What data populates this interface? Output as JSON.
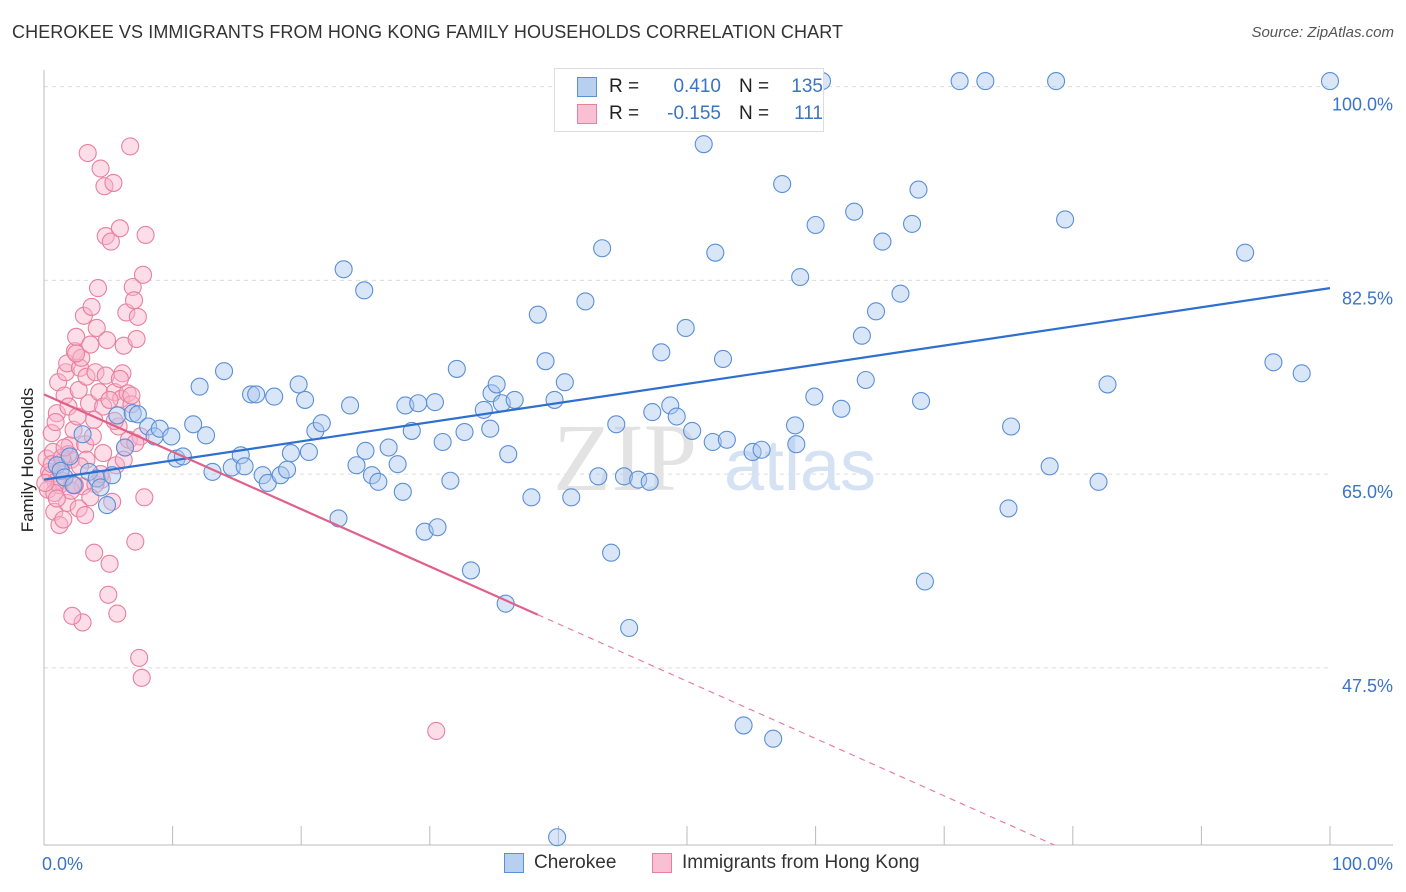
{
  "title": "CHEROKEE VS IMMIGRANTS FROM HONG KONG FAMILY HOUSEHOLDS CORRELATION CHART",
  "source": "Source: ZipAtlas.com",
  "watermark": {
    "zip": "ZIP",
    "atlas": "atlas"
  },
  "legend": {
    "r_label": "R =",
    "n_label": "N =",
    "rows": [
      {
        "name": "Cherokee",
        "r": "0.410",
        "n": "135",
        "color": "#5b8fd6",
        "fill": "#b8d0f0"
      },
      {
        "name": "Immigrants from Hong Kong",
        "r": "-0.155",
        "n": "111",
        "color": "#e8809f",
        "fill": "#f8c0d2"
      }
    ]
  },
  "chart_data": {
    "type": "scatter",
    "title": "CHEROKEE VS IMMIGRANTS FROM HONG KONG FAMILY HOUSEHOLDS CORRELATION CHART",
    "xlabel": "",
    "ylabel": "Family Households",
    "xlim": [
      0,
      100
    ],
    "ylim": [
      31.5,
      101.5
    ],
    "x_tick_labels": [
      {
        "x": 0,
        "label": "0.0%"
      },
      {
        "x": 100,
        "label": "100.0%"
      }
    ],
    "y_tick_labels": [
      {
        "y": 100.0,
        "label": "100.0%"
      },
      {
        "y": 82.5,
        "label": "82.5%"
      },
      {
        "y": 65.0,
        "label": "65.0%"
      },
      {
        "y": 47.5,
        "label": "47.5%"
      }
    ],
    "grid": true,
    "series": [
      {
        "name": "Cherokee",
        "color": "#5b8fd6",
        "trend": {
          "x0": 0.0,
          "y0": 64.5,
          "x1": 100.0,
          "y1": 81.8,
          "style": "solid"
        },
        "points": [
          [
            1,
            65.8
          ],
          [
            1.3,
            65.3
          ],
          [
            1.6,
            64.7
          ],
          [
            2,
            66.6
          ],
          [
            2.3,
            64.0
          ],
          [
            3,
            68.6
          ],
          [
            3.5,
            65.2
          ],
          [
            4.1,
            64.6
          ],
          [
            4.4,
            63.8
          ],
          [
            4.9,
            62.2
          ],
          [
            5.3,
            64.9
          ],
          [
            5.7,
            70.3
          ],
          [
            6.3,
            67.4
          ],
          [
            6.9,
            70.5
          ],
          [
            7.3,
            70.4
          ],
          [
            8.1,
            69.3
          ],
          [
            8.6,
            68.4
          ],
          [
            9.0,
            69.1
          ],
          [
            9.9,
            68.4
          ],
          [
            10.3,
            66.4
          ],
          [
            10.8,
            66.6
          ],
          [
            11.6,
            69.5
          ],
          [
            12.1,
            72.9
          ],
          [
            12.6,
            68.5
          ],
          [
            13.1,
            65.2
          ],
          [
            14.0,
            74.3
          ],
          [
            14.6,
            65.6
          ],
          [
            15.3,
            66.7
          ],
          [
            15.6,
            65.7
          ],
          [
            16.1,
            72.2
          ],
          [
            16.5,
            72.2
          ],
          [
            17.0,
            64.9
          ],
          [
            17.4,
            64.2
          ],
          [
            17.9,
            72.0
          ],
          [
            18.4,
            64.9
          ],
          [
            18.9,
            65.4
          ],
          [
            19.2,
            66.9
          ],
          [
            19.8,
            73.1
          ],
          [
            20.3,
            71.7
          ],
          [
            20.6,
            67.0
          ],
          [
            21.1,
            68.9
          ],
          [
            21.6,
            69.6
          ],
          [
            22.9,
            61.0
          ],
          [
            23.3,
            83.5
          ],
          [
            23.8,
            71.2
          ],
          [
            24.3,
            65.8
          ],
          [
            24.9,
            81.6
          ],
          [
            25.0,
            67.1
          ],
          [
            25.5,
            64.9
          ],
          [
            26.0,
            64.3
          ],
          [
            26.8,
            67.4
          ],
          [
            27.5,
            65.9
          ],
          [
            27.9,
            63.4
          ],
          [
            28.1,
            71.2
          ],
          [
            28.6,
            68.9
          ],
          [
            29.1,
            71.4
          ],
          [
            29.6,
            59.8
          ],
          [
            30.4,
            71.5
          ],
          [
            30.6,
            60.2
          ],
          [
            31.0,
            67.9
          ],
          [
            31.6,
            64.4
          ],
          [
            32.1,
            74.5
          ],
          [
            32.7,
            68.8
          ],
          [
            33.2,
            56.3
          ],
          [
            34.2,
            70.8
          ],
          [
            34.7,
            69.1
          ],
          [
            34.8,
            72.3
          ],
          [
            35.2,
            73.1
          ],
          [
            35.6,
            71.4
          ],
          [
            35.9,
            53.3
          ],
          [
            36.6,
            71.7
          ],
          [
            37.9,
            62.9
          ],
          [
            38.4,
            79.4
          ],
          [
            39.0,
            75.2
          ],
          [
            39.7,
            71.7
          ],
          [
            39.9,
            32.2
          ],
          [
            40.5,
            73.3
          ],
          [
            41.0,
            62.9
          ],
          [
            42.1,
            80.6
          ],
          [
            43.1,
            64.8
          ],
          [
            43.4,
            85.4
          ],
          [
            44.1,
            57.9
          ],
          [
            44.5,
            69.5
          ],
          [
            45.1,
            64.8
          ],
          [
            45.5,
            51.1
          ],
          [
            46.2,
            64.5
          ],
          [
            47.1,
            64.3
          ],
          [
            48.0,
            76.0
          ],
          [
            48.7,
            71.2
          ],
          [
            49.2,
            70.2
          ],
          [
            49.9,
            78.2
          ],
          [
            50.4,
            68.9
          ],
          [
            51.3,
            100.6
          ],
          [
            51.3,
            94.8
          ],
          [
            52.0,
            67.9
          ],
          [
            52.2,
            85.0
          ],
          [
            52.8,
            75.4
          ],
          [
            53.1,
            68.1
          ],
          [
            54.4,
            42.3
          ],
          [
            55.1,
            67.0
          ],
          [
            55.8,
            67.2
          ],
          [
            56.7,
            41.1
          ],
          [
            57.4,
            91.2
          ],
          [
            58.4,
            69.4
          ],
          [
            58.5,
            67.7
          ],
          [
            58.8,
            82.8
          ],
          [
            60.0,
            87.5
          ],
          [
            60.5,
            100.5
          ],
          [
            62.0,
            70.9
          ],
          [
            63.0,
            88.7
          ],
          [
            63.6,
            77.5
          ],
          [
            63.9,
            73.5
          ],
          [
            64.7,
            79.7
          ],
          [
            65.2,
            86.0
          ],
          [
            66.6,
            81.3
          ],
          [
            67.5,
            87.6
          ],
          [
            68.0,
            90.7
          ],
          [
            68.2,
            71.6
          ],
          [
            68.5,
            55.3
          ],
          [
            71.2,
            100.5
          ],
          [
            73.2,
            100.5
          ],
          [
            75.0,
            61.9
          ],
          [
            75.2,
            69.3
          ],
          [
            78.2,
            65.7
          ],
          [
            78.7,
            100.5
          ],
          [
            79.4,
            88.0
          ],
          [
            82.0,
            64.3
          ],
          [
            82.7,
            73.1
          ],
          [
            93.4,
            85.0
          ],
          [
            95.6,
            75.1
          ],
          [
            97.8,
            74.1
          ],
          [
            100.0,
            100.5
          ],
          [
            47.3,
            70.6
          ],
          [
            59.9,
            72.0
          ],
          [
            36.1,
            66.8
          ]
        ]
      },
      {
        "name": "Immigrants from Hong Kong",
        "color": "#e8809f",
        "trend": {
          "x0": 0.0,
          "y0": 72.2,
          "x1": 38.4,
          "y1": 52.3,
          "style": "solid",
          "dashed_to": {
            "x": 100.0,
            "y": 20.4
          }
        },
        "points": [
          [
            0.2,
            66.4
          ],
          [
            0.4,
            65.2
          ],
          [
            0.5,
            64.9
          ],
          [
            0.6,
            68.7
          ],
          [
            0.7,
            67.0
          ],
          [
            0.8,
            61.6
          ],
          [
            0.9,
            64.3
          ],
          [
            1.0,
            70.5
          ],
          [
            1.1,
            73.3
          ],
          [
            1.2,
            60.4
          ],
          [
            1.3,
            65.5
          ],
          [
            1.4,
            64.4
          ],
          [
            1.5,
            66.2
          ],
          [
            1.6,
            72.1
          ],
          [
            1.7,
            74.2
          ],
          [
            1.8,
            75.0
          ],
          [
            1.9,
            71.1
          ],
          [
            2.0,
            67.6
          ],
          [
            2.1,
            66.3
          ],
          [
            2.2,
            64.1
          ],
          [
            2.3,
            69.0
          ],
          [
            2.4,
            76.1
          ],
          [
            2.5,
            77.4
          ],
          [
            2.6,
            70.2
          ],
          [
            2.7,
            72.6
          ],
          [
            2.8,
            74.6
          ],
          [
            2.9,
            75.5
          ],
          [
            3.0,
            51.6
          ],
          [
            3.1,
            79.3
          ],
          [
            3.2,
            67.7
          ],
          [
            3.3,
            73.8
          ],
          [
            3.4,
            94.0
          ],
          [
            3.5,
            71.4
          ],
          [
            3.6,
            76.7
          ],
          [
            3.7,
            80.1
          ],
          [
            3.8,
            68.4
          ],
          [
            3.9,
            57.9
          ],
          [
            4.0,
            74.2
          ],
          [
            4.1,
            78.2
          ],
          [
            4.2,
            81.8
          ],
          [
            4.3,
            72.4
          ],
          [
            4.4,
            92.6
          ],
          [
            4.5,
            64.5
          ],
          [
            4.6,
            71.1
          ],
          [
            4.7,
            91.0
          ],
          [
            4.8,
            86.5
          ],
          [
            4.9,
            77.1
          ],
          [
            5.0,
            54.1
          ],
          [
            5.1,
            56.9
          ],
          [
            5.2,
            86.0
          ],
          [
            5.3,
            62.5
          ],
          [
            5.4,
            91.3
          ],
          [
            5.5,
            72.4
          ],
          [
            5.6,
            65.8
          ],
          [
            5.7,
            52.4
          ],
          [
            5.8,
            69.3
          ],
          [
            5.9,
            87.2
          ],
          [
            6.0,
            71.8
          ],
          [
            6.1,
            74.1
          ],
          [
            6.2,
            76.6
          ],
          [
            6.3,
            67.4
          ],
          [
            6.4,
            79.6
          ],
          [
            6.5,
            72.3
          ],
          [
            6.6,
            68.1
          ],
          [
            6.7,
            94.6
          ],
          [
            6.8,
            71.3
          ],
          [
            6.9,
            81.9
          ],
          [
            7.0,
            80.7
          ],
          [
            7.1,
            58.9
          ],
          [
            7.2,
            77.2
          ],
          [
            7.3,
            79.2
          ],
          [
            7.4,
            48.4
          ],
          [
            7.5,
            68.4
          ],
          [
            7.6,
            46.6
          ],
          [
            7.7,
            83.0
          ],
          [
            7.8,
            62.9
          ],
          [
            7.9,
            86.6
          ],
          [
            3.0,
            63.9
          ],
          [
            1.5,
            60.9
          ],
          [
            2.2,
            52.2
          ],
          [
            4.8,
            73.9
          ],
          [
            0.3,
            63.6
          ],
          [
            0.9,
            69.7
          ],
          [
            1.8,
            62.4
          ],
          [
            2.5,
            75.9
          ],
          [
            3.3,
            66.3
          ],
          [
            4.0,
            64.1
          ],
          [
            5.5,
            69.8
          ],
          [
            6.2,
            66.3
          ],
          [
            7.1,
            67.8
          ],
          [
            0.6,
            65.9
          ],
          [
            1.2,
            64.0
          ],
          [
            1.9,
            66.8
          ],
          [
            2.8,
            65.7
          ],
          [
            3.6,
            62.9
          ],
          [
            4.4,
            65.0
          ],
          [
            0.8,
            63.3
          ],
          [
            1.4,
            66.5
          ],
          [
            2.1,
            63.5
          ],
          [
            2.7,
            61.9
          ],
          [
            3.9,
            69.9
          ],
          [
            5.1,
            71.7
          ],
          [
            5.9,
            73.6
          ],
          [
            6.8,
            72.1
          ],
          [
            1.0,
            62.8
          ],
          [
            1.6,
            67.4
          ],
          [
            2.4,
            64.0
          ],
          [
            3.2,
            61.3
          ],
          [
            4.6,
            66.9
          ],
          [
            30.5,
            41.8
          ],
          [
            0.1,
            64.2
          ]
        ]
      }
    ]
  }
}
